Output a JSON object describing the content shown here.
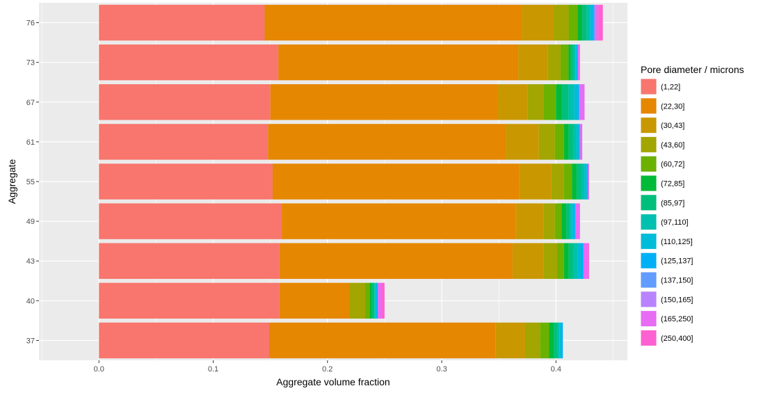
{
  "chart_data": {
    "type": "bar",
    "orientation": "horizontal",
    "stacked": true,
    "title": "",
    "xlabel": "Aggregate volume fraction",
    "ylabel": "Aggregate",
    "xlim": [
      -0.0525,
      0.4625
    ],
    "x_ticks": [
      0.0,
      0.1,
      0.2,
      0.3,
      0.4
    ],
    "x_tick_labels": [
      "0.0",
      "0.1",
      "0.2",
      "0.3",
      "0.4"
    ],
    "categories": [
      "37",
      "40",
      "43",
      "49",
      "55",
      "61",
      "67",
      "73",
      "76"
    ],
    "grid": true,
    "panel_background": "#ebebeb",
    "legend": {
      "title": "Pore diameter / microns",
      "position": "right"
    },
    "series": [
      {
        "name": "(1,22]",
        "color": "#F8766D",
        "values": [
          0.149,
          0.158,
          0.158,
          0.16,
          0.152,
          0.148,
          0.15,
          0.157,
          0.145
        ]
      },
      {
        "name": "(22,30]",
        "color": "#E58700",
        "values": [
          0.198,
          0.061,
          0.204,
          0.205,
          0.216,
          0.208,
          0.199,
          0.21,
          0.225
        ]
      },
      {
        "name": "(30,43]",
        "color": "#C99800",
        "values": [
          0.026,
          0.0,
          0.027,
          0.024,
          0.028,
          0.029,
          0.026,
          0.026,
          0.028
        ]
      },
      {
        "name": "(43,60]",
        "color": "#A3A500",
        "values": [
          0.013,
          0.014,
          0.012,
          0.01,
          0.011,
          0.014,
          0.014,
          0.011,
          0.013
        ]
      },
      {
        "name": "(60,72]",
        "color": "#6BB100",
        "values": [
          0.008,
          0.004,
          0.006,
          0.006,
          0.007,
          0.008,
          0.011,
          0.007,
          0.008
        ]
      },
      {
        "name": "(72,85]",
        "color": "#00BA38",
        "values": [
          0.004,
          0.002,
          0.004,
          0.004,
          0.004,
          0.004,
          0.005,
          0.002,
          0.004
        ]
      },
      {
        "name": "(85,97]",
        "color": "#00BF7D",
        "values": [
          0.003,
          0.002,
          0.004,
          0.003,
          0.004,
          0.004,
          0.006,
          0.002,
          0.004
        ]
      },
      {
        "name": "(97,110]",
        "color": "#00C0AF",
        "values": [
          0.002,
          0.001,
          0.004,
          0.002,
          0.003,
          0.003,
          0.005,
          0.002,
          0.003
        ]
      },
      {
        "name": "(110,125]",
        "color": "#00BCD8",
        "values": [
          0.002,
          0.001,
          0.003,
          0.002,
          0.002,
          0.002,
          0.003,
          0.001,
          0.002
        ]
      },
      {
        "name": "(125,137]",
        "color": "#00B0F6",
        "values": [
          0.001,
          0.001,
          0.002,
          0.001,
          0.001,
          0.001,
          0.001,
          0.001,
          0.001
        ]
      },
      {
        "name": "(137,150]",
        "color": "#619CFF",
        "values": [
          0.0,
          0.0,
          0.0,
          0.0,
          0.0,
          0.0,
          0.001,
          0.0,
          0.001
        ]
      },
      {
        "name": "(150,165]",
        "color": "#B983FF",
        "values": [
          0.0,
          0.0,
          0.0,
          0.0,
          0.0,
          0.0,
          0.0,
          0.0,
          0.0
        ]
      },
      {
        "name": "(165,250]",
        "color": "#E76BF3",
        "values": [
          0.0,
          0.003,
          0.004,
          0.004,
          0.001,
          0.002,
          0.004,
          0.002,
          0.003
        ]
      },
      {
        "name": "(250,400]",
        "color": "#FD61D1",
        "values": [
          0.0,
          0.003,
          0.001,
          0.0,
          0.0,
          0.0,
          0.0,
          0.0,
          0.004
        ]
      }
    ]
  }
}
